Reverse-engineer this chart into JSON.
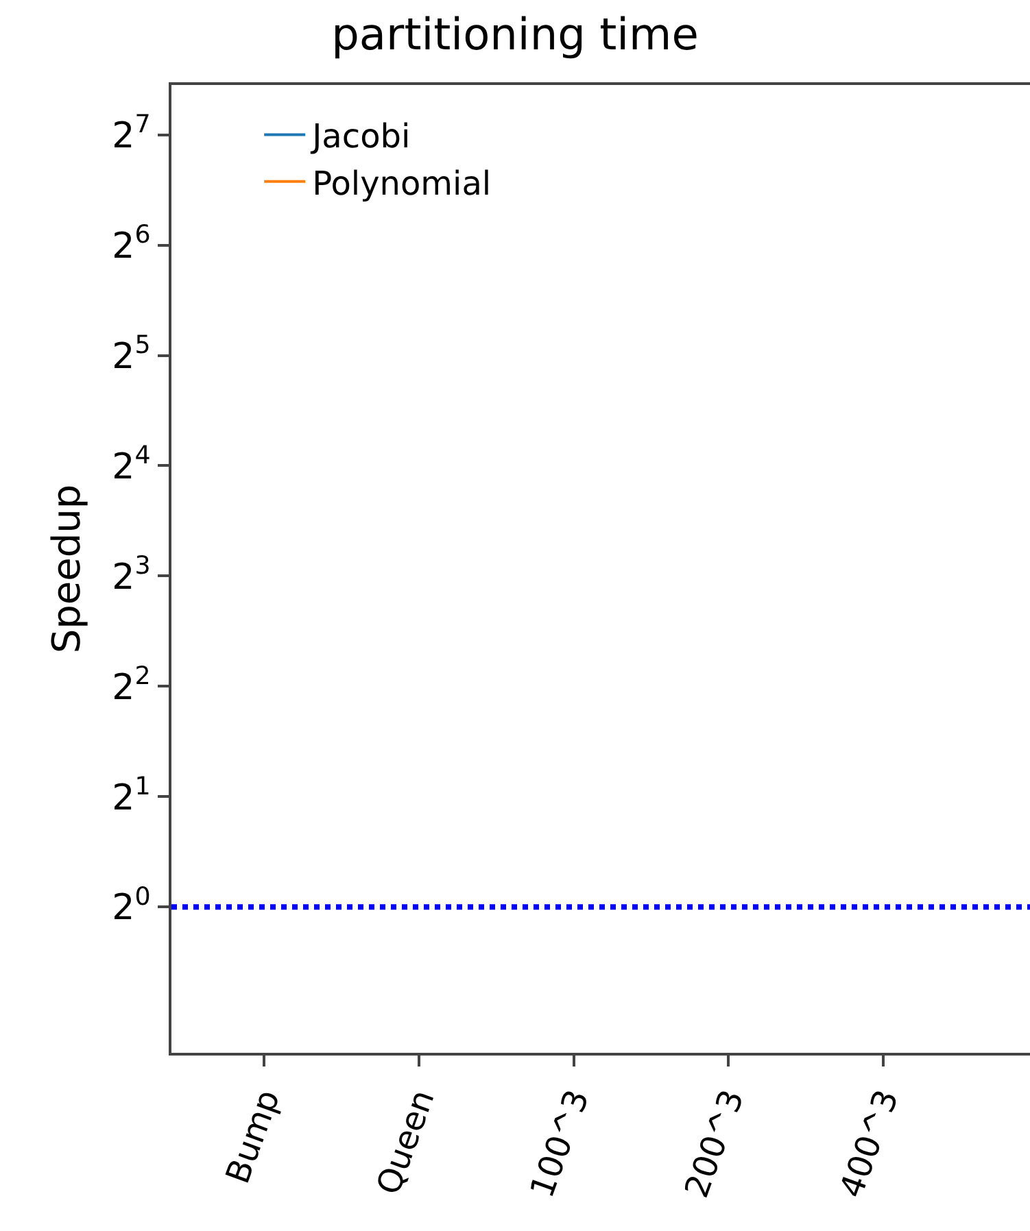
{
  "chart_data": {
    "type": "line",
    "title": "partitioning time",
    "ylabel": "Speedup",
    "categories": [
      "Bump",
      "Queen",
      "100^3",
      "200^3",
      "400^3"
    ],
    "series": [
      {
        "name": "Jacobi",
        "values": [
          null,
          null,
          null,
          null,
          null
        ]
      },
      {
        "name": "Polynomial",
        "values": [
          null,
          null,
          null,
          null,
          null
        ]
      }
    ],
    "log": "y",
    "ylim": [
      0.4,
      175
    ],
    "yticks": [
      {
        "value": 1,
        "label": "2$^{0}$"
      },
      {
        "value": 2,
        "label": "2$^{1}$"
      },
      {
        "value": 4,
        "label": "2$^{2}$"
      },
      {
        "value": 8,
        "label": "2$^{3}$"
      },
      {
        "value": 16,
        "label": "2$^{4}$"
      },
      {
        "value": 32,
        "label": "2$^{5}$"
      },
      {
        "value": 64,
        "label": "2$^{6}$"
      },
      {
        "value": 128,
        "label": "2$^{7}$"
      }
    ],
    "ref_lines": [
      {
        "axis": "y",
        "value": 1,
        "color": "#0000ff",
        "line_style": "dotted"
      }
    ],
    "legend": "top left",
    "grid": false
  }
}
